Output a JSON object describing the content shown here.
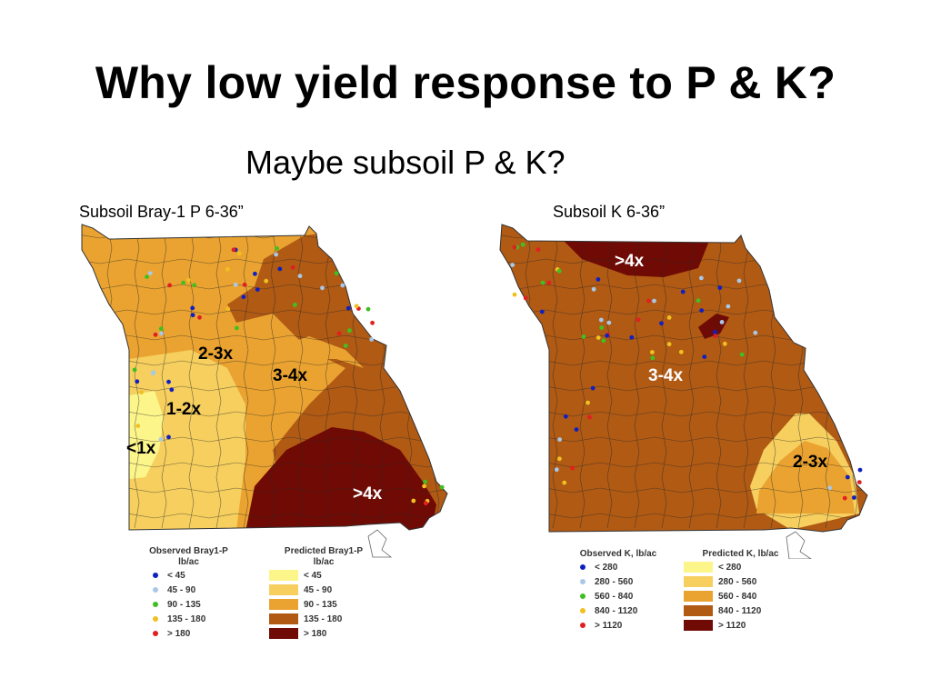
{
  "slide": {
    "title": "Why low yield response to P & K?",
    "subtitle": "Maybe subsoil P & K?"
  },
  "maps": [
    {
      "caption": "Subsoil Bray-1 P 6-36”",
      "labels": [
        "2-3x",
        "3-4x",
        "1-2x",
        "<1x",
        ">4x"
      ],
      "observed_legend": {
        "title_line1": "Observed Bray1-P",
        "title_line2": "lb/ac",
        "items": [
          {
            "label": "< 45",
            "color": "#1020c0"
          },
          {
            "label": "45 - 90",
            "color": "#a8c8e8"
          },
          {
            "label": "90 - 135",
            "color": "#40c020"
          },
          {
            "label": "135 - 180",
            "color": "#f0c020"
          },
          {
            "label": "> 180",
            "color": "#e02020"
          }
        ]
      },
      "predicted_legend": {
        "title_line1": "Predicted Bray1-P",
        "title_line2": "lb/ac",
        "items": [
          {
            "label": "< 45",
            "color": "#fcf58a"
          },
          {
            "label": "45 - 90",
            "color": "#f6cf5e"
          },
          {
            "label": "90 - 135",
            "color": "#eaa330"
          },
          {
            "label": "135 - 180",
            "color": "#b05a14"
          },
          {
            "label": "> 180",
            "color": "#700a04"
          }
        ]
      }
    },
    {
      "caption": "Subsoil K 6-36”",
      "labels": [
        ">4x",
        "3-4x",
        "2-3x"
      ],
      "observed_legend": {
        "title_line1": "Observed K,  lb/ac",
        "title_line2": "",
        "items": [
          {
            "label": "< 280",
            "color": "#1020c0"
          },
          {
            "label": "280 - 560",
            "color": "#a8c8e8"
          },
          {
            "label": "560 - 840",
            "color": "#40c020"
          },
          {
            "label": "840 - 1120",
            "color": "#f0c020"
          },
          {
            "label": "> 1120",
            "color": "#e02020"
          }
        ]
      },
      "predicted_legend": {
        "title_line1": "Predicted K,  lb/ac",
        "title_line2": "",
        "items": [
          {
            "label": "< 280",
            "color": "#fcf58a"
          },
          {
            "label": "280 - 560",
            "color": "#f6cf5e"
          },
          {
            "label": "560 - 840",
            "color": "#eaa330"
          },
          {
            "label": "840 - 1120",
            "color": "#b05a14"
          },
          {
            "label": "> 1120",
            "color": "#700a04"
          }
        ]
      }
    }
  ]
}
